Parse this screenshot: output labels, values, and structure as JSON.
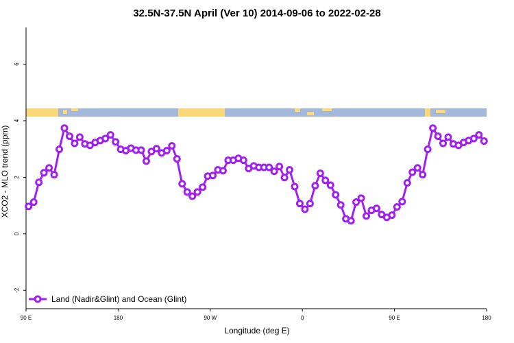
{
  "chart_data": {
    "type": "line",
    "title": "32.5N-37.5N April (Ver 10)   2014-09-06 to 2022-02-28",
    "xlabel": "Longitude (deg E)",
    "ylabel": "XCO2 - MLO trend (ppm)",
    "x": [
      92.5,
      97.5,
      102.5,
      107.5,
      112.5,
      117.5,
      122.5,
      127.5,
      132.5,
      137.5,
      142.5,
      147.5,
      152.5,
      157.5,
      162.5,
      167.5,
      172.5,
      177.5,
      182.5,
      187.5,
      192.5,
      197.5,
      202.5,
      207.5,
      212.5,
      217.5,
      222.5,
      227.5,
      232.5,
      237.5,
      242.5,
      247.5,
      252.5,
      257.5,
      262.5,
      267.5,
      272.5,
      277.5,
      282.5,
      287.5,
      292.5,
      297.5,
      302.5,
      307.5,
      312.5,
      317.5,
      322.5,
      327.5,
      332.5,
      337.5,
      342.5,
      347.5,
      352.5,
      357.5,
      362.5,
      367.5,
      372.5,
      377.5,
      382.5,
      387.5,
      392.5,
      397.5,
      402.5,
      407.5,
      412.5,
      417.5,
      422.5,
      427.5,
      432.5,
      437.5,
      442.5,
      447.5,
      452.5,
      457.5,
      462.5,
      467.5,
      472.5,
      477.5,
      482.5,
      487.5,
      492.5,
      497.5,
      502.5,
      507.5,
      512.5,
      517.5,
      522.5,
      527.5,
      532.5,
      537.5
    ],
    "series": [
      {
        "name": "Land (Nadir&Glint) and Ocean (Glint)",
        "color": "#a020f0",
        "values": [
          0.97,
          1.12,
          1.82,
          2.16,
          2.33,
          2.09,
          2.99,
          3.74,
          3.45,
          3.2,
          3.42,
          3.18,
          3.13,
          3.23,
          3.3,
          3.37,
          3.5,
          3.25,
          2.99,
          2.94,
          3.03,
          2.96,
          2.96,
          2.57,
          2.91,
          3.01,
          2.86,
          2.94,
          3.11,
          2.65,
          1.77,
          1.48,
          1.33,
          1.48,
          1.65,
          2.04,
          2.06,
          2.26,
          2.23,
          2.6,
          2.6,
          2.67,
          2.6,
          2.31,
          2.4,
          2.35,
          2.35,
          2.35,
          2.21,
          2.38,
          1.99,
          2.26,
          1.67,
          1.07,
          0.87,
          1.07,
          1.7,
          2.14,
          1.89,
          1.72,
          1.38,
          1.02,
          0.53,
          0.46,
          1.12,
          1.26,
          0.63,
          0.83,
          0.9,
          0.68,
          0.58,
          0.66,
          0.95,
          1.14,
          1.8,
          2.18,
          2.33,
          2.09,
          2.99,
          3.74,
          3.45,
          3.2,
          3.42,
          3.18,
          3.13,
          3.23,
          3.3,
          3.37,
          3.5,
          3.28
        ]
      }
    ],
    "xlim": [
      90,
      540
    ],
    "xticks": [
      {
        "value": 90,
        "label": "90 E"
      },
      180,
      {
        "value": 270,
        "label": "90 W"
      },
      {
        "value": 360,
        "label": "0"
      },
      {
        "value": 450,
        "label": "90 E"
      },
      {
        "value": 540,
        "label": "180"
      }
    ],
    "ylim": [
      -2.65,
      7.3
    ],
    "yticks": [
      -2,
      0,
      2,
      4,
      6
    ],
    "legend": "bottom-left"
  }
}
